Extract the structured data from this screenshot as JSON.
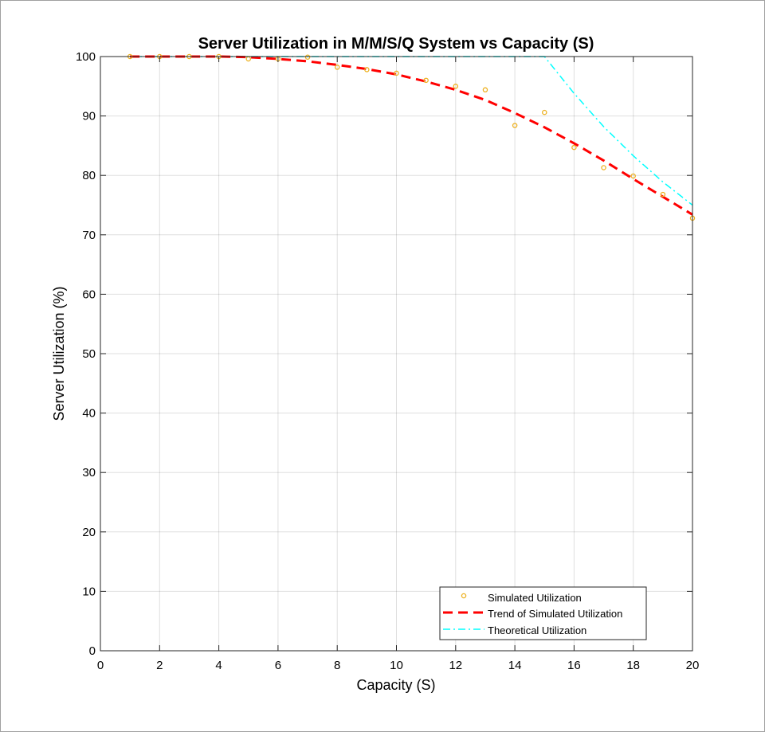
{
  "chart_data": {
    "type": "line",
    "title": "Server Utilization in M/M/S/Q System vs Capacity (S)",
    "xlabel": "Capacity (S)",
    "ylabel": "Server Utilization (%)",
    "xlim": [
      0,
      20
    ],
    "ylim": [
      0,
      100
    ],
    "xticks": [
      "0",
      "2",
      "4",
      "6",
      "8",
      "10",
      "12",
      "14",
      "16",
      "18",
      "20"
    ],
    "yticks": [
      "0",
      "10",
      "20",
      "30",
      "40",
      "50",
      "60",
      "70",
      "80",
      "90",
      "100"
    ],
    "grid": true,
    "legend_position": "bottom-right",
    "series": [
      {
        "name": "Simulated Utilization",
        "style": "markers",
        "color": "#EDB120",
        "x": [
          1,
          2,
          3,
          4,
          5,
          6,
          7,
          8,
          9,
          10,
          11,
          12,
          13,
          14,
          15,
          16,
          17,
          18,
          19,
          20
        ],
        "values": [
          100,
          100,
          100,
          100,
          99.6,
          99.6,
          99.9,
          98.2,
          97.8,
          97.2,
          96.0,
          95.0,
          94.4,
          88.4,
          90.6,
          84.7,
          81.3,
          79.9,
          76.8,
          72.8
        ]
      },
      {
        "name": "Trend of Simulated Utilization",
        "style": "dashed",
        "color": "#FF0000",
        "x": [
          1,
          2,
          3,
          4,
          5,
          6,
          7,
          8,
          9,
          10,
          11,
          12,
          13,
          14,
          15,
          16,
          17,
          18,
          19,
          20
        ],
        "values": [
          100,
          100,
          100,
          100,
          99.9,
          99.6,
          99.2,
          98.6,
          97.9,
          97.0,
          95.8,
          94.4,
          92.7,
          90.5,
          88.1,
          85.4,
          82.5,
          79.4,
          76.4,
          73.4
        ]
      },
      {
        "name": "Theoretical Utilization",
        "style": "dashdot",
        "color": "#00FFFF",
        "x": [
          1,
          2,
          3,
          4,
          5,
          6,
          7,
          8,
          9,
          10,
          11,
          12,
          13,
          14,
          15,
          16,
          17,
          18,
          19,
          20
        ],
        "values": [
          100,
          100,
          100,
          100,
          100,
          100,
          100,
          100,
          100,
          100,
          100,
          100,
          100,
          100,
          100,
          93.8,
          88.2,
          83.3,
          78.9,
          75.0
        ]
      }
    ]
  }
}
